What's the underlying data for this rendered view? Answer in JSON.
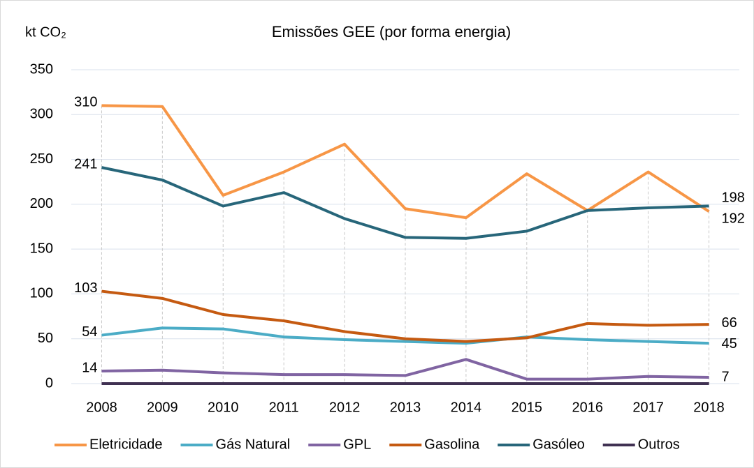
{
  "chart_data": {
    "type": "line",
    "title": "Emissões GEE (por forma energia)",
    "y_label": "kt CO₂",
    "categories": [
      "2008",
      "2009",
      "2010",
      "2011",
      "2012",
      "2013",
      "2014",
      "2015",
      "2016",
      "2017",
      "2018"
    ],
    "ylim": [
      0,
      350
    ],
    "yticks": [
      0,
      50,
      100,
      150,
      200,
      250,
      300,
      350
    ],
    "grid": true,
    "legend": "bottom",
    "series": [
      {
        "name": "Eletricidade",
        "color": "#f79646",
        "data_labels": true,
        "values": [
          310,
          309,
          210,
          236,
          267,
          195,
          185,
          234,
          193,
          236,
          192
        ]
      },
      {
        "name": "Gás Natural",
        "color": "#4bacc6",
        "data_labels": true,
        "values": [
          54,
          62,
          61,
          52,
          49,
          47,
          45,
          52,
          49,
          47,
          45
        ]
      },
      {
        "name": "GPL",
        "color": "#8064a2",
        "data_labels": true,
        "values": [
          14,
          15,
          12,
          10,
          10,
          9,
          27,
          5,
          5,
          8,
          7
        ]
      },
      {
        "name": "Gasolina",
        "color": "#c55a11",
        "data_labels": true,
        "values": [
          103,
          95,
          77,
          70,
          58,
          50,
          47,
          51,
          67,
          65,
          66
        ]
      },
      {
        "name": "Gasóleo",
        "color": "#27667a",
        "data_labels": true,
        "values": [
          241,
          227,
          198,
          213,
          184,
          163,
          162,
          170,
          193,
          196,
          198
        ]
      },
      {
        "name": "Outros",
        "color": "#403152",
        "data_labels": false,
        "values": [
          0,
          0,
          0,
          0,
          0,
          0,
          0,
          0,
          0,
          0,
          0
        ]
      }
    ]
  }
}
